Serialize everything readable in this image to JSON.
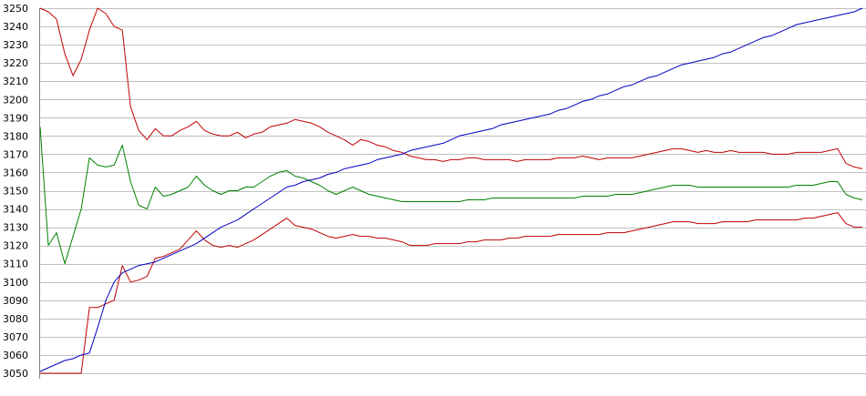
{
  "chart_data": {
    "type": "line",
    "title": "",
    "xlabel": "",
    "ylabel": "",
    "ylim": [
      3050,
      3250
    ],
    "grid": true,
    "legend": "none",
    "y_ticks": [
      "3050",
      "3060",
      "3070",
      "3080",
      "3090",
      "3100",
      "3110",
      "3120",
      "3130",
      "3140",
      "3150",
      "3160",
      "3170",
      "3180",
      "3190",
      "3200",
      "3210",
      "3220",
      "3230",
      "3240",
      "3250"
    ],
    "x": [
      0,
      1,
      2,
      3,
      4,
      5,
      6,
      7,
      8,
      9,
      10,
      11,
      12,
      13,
      14,
      15,
      16,
      17,
      18,
      19,
      20,
      21,
      22,
      23,
      24,
      25,
      26,
      27,
      28,
      29,
      30,
      31,
      32,
      33,
      34,
      35,
      36,
      37,
      38,
      39,
      40,
      41,
      42,
      43,
      44,
      45,
      46,
      47,
      48,
      49,
      50,
      51,
      52,
      53,
      54,
      55,
      56,
      57,
      58,
      59,
      60,
      61,
      62,
      63,
      64,
      65,
      66,
      67,
      68,
      69,
      70,
      71,
      72,
      73,
      74,
      75,
      76,
      77,
      78,
      79,
      80,
      81,
      82,
      83,
      84,
      85,
      86,
      87,
      88,
      89,
      90,
      91,
      92,
      93,
      94,
      95,
      96,
      97,
      98,
      99,
      100
    ],
    "series": [
      {
        "color": "#c00000",
        "values": [
          3250,
          3248,
          3244,
          3225,
          3213,
          3222,
          3238,
          3250,
          3247,
          3240,
          3238,
          3196,
          3183,
          3178,
          3184,
          3180,
          3180,
          3183,
          3185,
          3188,
          3183,
          3181,
          3180,
          3180,
          3182,
          3179,
          3181,
          3182,
          3185,
          3186,
          3187,
          3189,
          3188,
          3187,
          3185,
          3182,
          3180,
          3178,
          3175,
          3178,
          3177,
          3175,
          3174,
          3172,
          3171,
          3169,
          3168,
          3167,
          3167,
          3166,
          3167,
          3167,
          3168,
          3168,
          3167,
          3167,
          3167,
          3167,
          3166,
          3167,
          3167,
          3167,
          3167,
          3168,
          3168,
          3168,
          3169,
          3168,
          3167,
          3168,
          3168,
          3168,
          3168,
          3169,
          3170,
          3171,
          3172,
          3173,
          3173,
          3172,
          3171,
          3172,
          3171,
          3171,
          3172,
          3171,
          3171,
          3171,
          3171,
          3170,
          3170,
          3170,
          3171,
          3171,
          3171,
          3171,
          3172,
          3173,
          3165,
          3163,
          3162
        ]
      },
      {
        "color": "#008000",
        "values": [
          3185,
          3120,
          3127,
          3110,
          3125,
          3140,
          3168,
          3164,
          3163,
          3164,
          3175,
          3155,
          3142,
          3140,
          3152,
          3147,
          3148,
          3150,
          3152,
          3158,
          3153,
          3150,
          3148,
          3150,
          3150,
          3152,
          3152,
          3155,
          3158,
          3160,
          3161,
          3158,
          3157,
          3155,
          3153,
          3150,
          3148,
          3150,
          3152,
          3150,
          3148,
          3147,
          3146,
          3145,
          3144,
          3144,
          3144,
          3144,
          3144,
          3144,
          3144,
          3144,
          3145,
          3145,
          3145,
          3146,
          3146,
          3146,
          3146,
          3146,
          3146,
          3146,
          3146,
          3146,
          3146,
          3146,
          3147,
          3147,
          3147,
          3147,
          3148,
          3148,
          3148,
          3149,
          3150,
          3151,
          3152,
          3153,
          3153,
          3153,
          3152,
          3152,
          3152,
          3152,
          3152,
          3152,
          3152,
          3152,
          3152,
          3152,
          3152,
          3152,
          3153,
          3153,
          3153,
          3154,
          3155,
          3155,
          3148,
          3146,
          3145
        ]
      },
      {
        "color": "#c00000",
        "values": [
          3050,
          3050,
          3050,
          3050,
          3050,
          3050,
          3086,
          3086,
          3088,
          3090,
          3109,
          3100,
          3101,
          3103,
          3113,
          3114,
          3116,
          3118,
          3123,
          3128,
          3123,
          3120,
          3119,
          3120,
          3119,
          3121,
          3123,
          3126,
          3129,
          3132,
          3135,
          3131,
          3130,
          3129,
          3127,
          3125,
          3124,
          3125,
          3126,
          3125,
          3125,
          3124,
          3124,
          3123,
          3122,
          3120,
          3120,
          3120,
          3121,
          3121,
          3121,
          3121,
          3122,
          3122,
          3123,
          3123,
          3123,
          3124,
          3124,
          3125,
          3125,
          3125,
          3125,
          3126,
          3126,
          3126,
          3126,
          3126,
          3126,
          3127,
          3127,
          3127,
          3128,
          3129,
          3130,
          3131,
          3132,
          3133,
          3133,
          3133,
          3132,
          3132,
          3132,
          3133,
          3133,
          3133,
          3133,
          3134,
          3134,
          3134,
          3134,
          3134,
          3134,
          3135,
          3135,
          3136,
          3137,
          3138,
          3132,
          3130,
          3130
        ]
      },
      {
        "color": "#0000c0",
        "values": [
          3051,
          3053,
          3055,
          3057,
          3058,
          3060,
          3061,
          3075,
          3090,
          3100,
          3105,
          3107,
          3109,
          3110,
          3111,
          3113,
          3115,
          3117,
          3119,
          3121,
          3124,
          3127,
          3130,
          3132,
          3134,
          3137,
          3140,
          3143,
          3146,
          3149,
          3152,
          3153,
          3155,
          3156,
          3157,
          3159,
          3160,
          3162,
          3163,
          3164,
          3165,
          3167,
          3168,
          3169,
          3170,
          3172,
          3173,
          3174,
          3175,
          3176,
          3178,
          3180,
          3181,
          3182,
          3183,
          3184,
          3186,
          3187,
          3188,
          3189,
          3190,
          3191,
          3192,
          3194,
          3195,
          3197,
          3199,
          3200,
          3202,
          3203,
          3205,
          3207,
          3208,
          3210,
          3212,
          3213,
          3215,
          3217,
          3219,
          3220,
          3221,
          3222,
          3223,
          3225,
          3226,
          3228,
          3230,
          3232,
          3234,
          3235,
          3237,
          3239,
          3241,
          3242,
          3243,
          3244,
          3245,
          3246,
          3247,
          3248,
          3250
        ]
      }
    ]
  }
}
